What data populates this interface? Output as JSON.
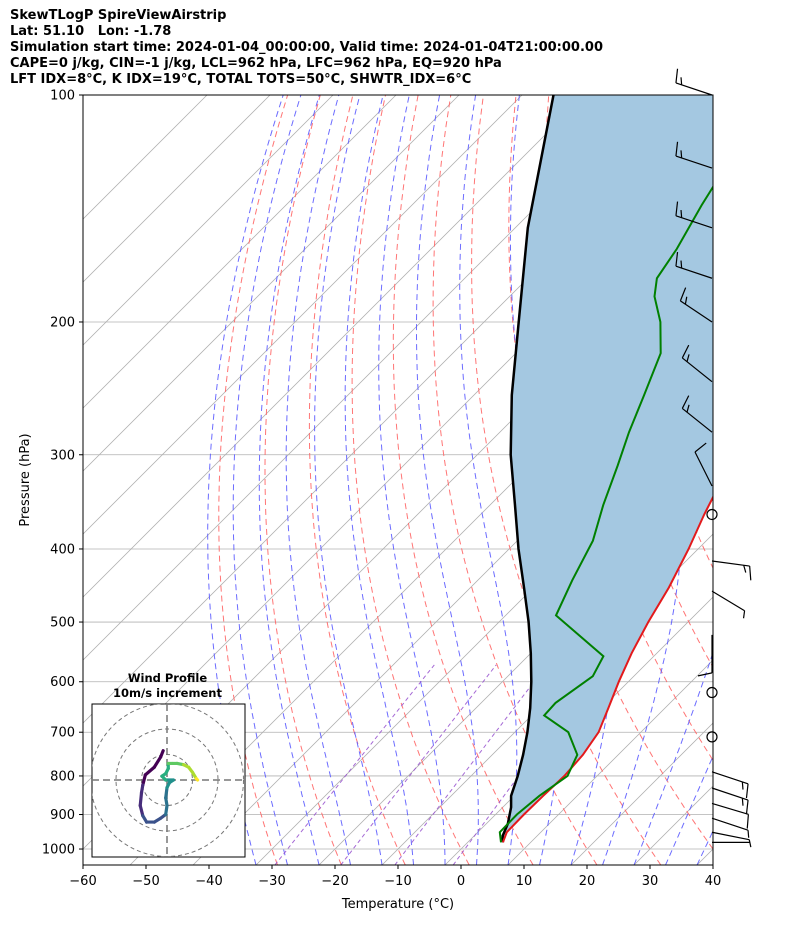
{
  "header": {
    "lines": [
      "SkewTLogP SpireViewAirstrip",
      "Lat: 51.10   Lon: -1.78",
      "Simulation start time: 2024-01-04_00:00:00, Valid time: 2024-01-04T21:00:00.00",
      "CAPE=0 j/kg, CIN=-1 j/kg, LCL=962 hPa, LFC=962 hPa, EQ=920 hPa",
      "LFT IDX=8°C, K IDX=19°C, TOTAL TOTS=50°C, SHWTR_IDX=6°C"
    ]
  },
  "chart_data": [
    {
      "type": "line",
      "subtype": "skew-t log-p",
      "xlabel": "Temperature (°C)",
      "ylabel": "Pressure (hPa)",
      "xlim": [
        -60,
        40
      ],
      "ylim": [
        1050,
        100
      ],
      "y_scale": "log",
      "x_ticks": [
        "−60",
        "−50",
        "−40",
        "−30",
        "−20",
        "−10",
        "0",
        "10",
        "20",
        "30",
        "40"
      ],
      "y_ticks": [
        "100",
        "200",
        "300",
        "400",
        "500",
        "600",
        "700",
        "800",
        "900",
        "1000"
      ],
      "grid": true,
      "colors": {
        "temperature": "#e31a1c",
        "dewpoint": "#008000",
        "parcel": "#000000",
        "cape_fill": "#a4c8e1",
        "dry_adiabats": "#ff6666",
        "moist_adiabats": "#5c5cff",
        "mixing_ratio": "#9b59d0",
        "isotherms": "#b0b0b0"
      },
      "series": [
        {
          "role": "temperature",
          "points": [
            [
              5.6,
              980
            ],
            [
              4.6,
              950
            ],
            [
              4.5,
              900
            ],
            [
              4.6,
              850
            ],
            [
              4.8,
              800
            ],
            [
              4.4,
              750
            ],
            [
              3.3,
              700
            ],
            [
              1.0,
              650
            ],
            [
              -1.5,
              600
            ],
            [
              -4.0,
              550
            ],
            [
              -6.3,
              500
            ],
            [
              -8.5,
              450
            ],
            [
              -11.5,
              400
            ],
            [
              -14.5,
              360
            ],
            [
              -17.5,
              320
            ],
            [
              -20.5,
              290
            ],
            [
              -23.0,
              260
            ],
            [
              -27.5,
              230
            ],
            [
              -31.5,
              210
            ],
            [
              -34.5,
              190
            ],
            [
              -37.0,
              175
            ],
            [
              -40.0,
              160
            ],
            [
              -43.8,
              145
            ],
            [
              -47.5,
              130
            ],
            [
              -51.0,
              115
            ],
            [
              -54.0,
              100
            ]
          ]
        },
        {
          "role": "dewpoint",
          "points": [
            [
              5.3,
              980
            ],
            [
              3.5,
              950
            ],
            [
              3.4,
              900
            ],
            [
              4.0,
              850
            ],
            [
              5.3,
              800
            ],
            [
              3.5,
              750
            ],
            [
              -1.5,
              700
            ],
            [
              -8.0,
              665
            ],
            [
              -8.2,
              640
            ],
            [
              -6.5,
              590
            ],
            [
              -8.0,
              555
            ],
            [
              -22.0,
              490
            ],
            [
              -25.0,
              440
            ],
            [
              -28.0,
              390
            ],
            [
              -32.0,
              350
            ],
            [
              -36.0,
              310
            ],
            [
              -39.5,
              280
            ],
            [
              -43.0,
              250
            ],
            [
              -47.0,
              220
            ],
            [
              -52.0,
              200
            ],
            [
              -57.0,
              185
            ],
            [
              -59.5,
              175
            ],
            [
              -61.0,
              160
            ],
            [
              -64.0,
              140
            ],
            [
              -67.0,
              120
            ],
            [
              -69.5,
              100
            ]
          ]
        },
        {
          "role": "parcel profile",
          "points": [
            [
              5.6,
              980
            ],
            [
              4.5,
              960
            ],
            [
              3.4,
              925
            ],
            [
              1.3,
              880
            ],
            [
              -0.5,
              850
            ],
            [
              -2.6,
              800
            ],
            [
              -5.1,
              750
            ],
            [
              -8.0,
              700
            ],
            [
              -11.4,
              650
            ],
            [
              -15.4,
              600
            ],
            [
              -20.0,
              550
            ],
            [
              -25.3,
              500
            ],
            [
              -31.5,
              450
            ],
            [
              -38.5,
              400
            ],
            [
              -46.0,
              350
            ],
            [
              -54.7,
              300
            ],
            [
              -64.0,
              250
            ],
            [
              -74.5,
              200
            ],
            [
              -88.0,
              150
            ],
            [
              -105.0,
              100
            ]
          ]
        }
      ],
      "wind_barbs": [
        {
          "pressure": 100,
          "u": -15,
          "v": 5
        },
        {
          "pressure": 125,
          "u": -15,
          "v": 5
        },
        {
          "pressure": 150,
          "u": -15,
          "v": 5
        },
        {
          "pressure": 175,
          "u": -15,
          "v": 5
        },
        {
          "pressure": 200,
          "u": -12,
          "v": 8
        },
        {
          "pressure": 240,
          "u": -10,
          "v": 8
        },
        {
          "pressure": 280,
          "u": -10,
          "v": 8
        },
        {
          "pressure": 330,
          "u": -5,
          "v": 10
        },
        {
          "pressure": 360,
          "calm": true
        },
        {
          "pressure": 415,
          "u": 15,
          "v": -2
        },
        {
          "pressure": 455,
          "u": 5,
          "v": -3
        },
        {
          "pressure": 520,
          "u": 0,
          "v": -8
        },
        {
          "pressure": 620,
          "calm": true
        },
        {
          "pressure": 710,
          "calm": true
        },
        {
          "pressure": 790,
          "u": 15,
          "v": -5
        },
        {
          "pressure": 830,
          "u": 12,
          "v": -4
        },
        {
          "pressure": 870,
          "u": 10,
          "v": -3
        },
        {
          "pressure": 910,
          "u": 6,
          "v": -2
        },
        {
          "pressure": 950,
          "u": 5,
          "v": -1
        },
        {
          "pressure": 980,
          "u": 2,
          "v": 0
        }
      ]
    },
    {
      "type": "line",
      "subtype": "hodograph",
      "title": "Wind Profile",
      "subtitle": "10m/s increment",
      "rings_ms": [
        10,
        20,
        30
      ],
      "x_range": [
        -25,
        25
      ],
      "y_range": [
        -25,
        25
      ],
      "colormap": "viridis",
      "points": [
        [
          -1.5,
          11.5
        ],
        [
          -2.5,
          9
        ],
        [
          -5,
          5
        ],
        [
          -8.5,
          2
        ],
        [
          -9.5,
          -2
        ],
        [
          -10,
          -5
        ],
        [
          -10.5,
          -10
        ],
        [
          -9.5,
          -14
        ],
        [
          -8,
          -16.5
        ],
        [
          -5,
          -16.5
        ],
        [
          -2.5,
          -15
        ],
        [
          -0.5,
          -13.5
        ],
        [
          0,
          -10
        ],
        [
          -0.5,
          -7
        ],
        [
          0,
          -3
        ],
        [
          1,
          -1
        ],
        [
          2.5,
          0
        ],
        [
          -0.5,
          0
        ],
        [
          -2,
          1.5
        ],
        [
          -0.5,
          2.5
        ],
        [
          0.5,
          4.5
        ],
        [
          0.5,
          6.5
        ],
        [
          2,
          6.5
        ],
        [
          4,
          6.5
        ],
        [
          6.5,
          6
        ],
        [
          8.5,
          5
        ],
        [
          10,
          3
        ],
        [
          11.5,
          0.5
        ],
        [
          12,
          0
        ]
      ]
    }
  ]
}
